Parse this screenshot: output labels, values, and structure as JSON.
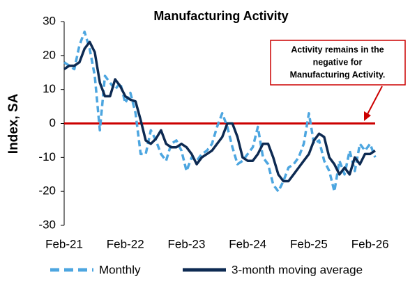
{
  "chart_data": {
    "type": "line",
    "title": "Manufacturing Activity",
    "y_label": "Index, SA",
    "categories": [
      "Feb-21",
      null,
      null,
      null,
      null,
      null,
      null,
      null,
      null,
      null,
      null,
      null,
      "Feb-22",
      null,
      null,
      null,
      null,
      null,
      null,
      null,
      null,
      null,
      null,
      null,
      "Feb-23",
      null,
      null,
      null,
      null,
      null,
      null,
      null,
      null,
      null,
      null,
      null,
      "Feb-24",
      null,
      null,
      null,
      null,
      null,
      null,
      null,
      null,
      null,
      null,
      null,
      "Feb-25",
      null,
      null,
      null,
      null,
      null,
      null,
      null,
      null,
      null,
      null,
      null,
      "Feb-26",
      null
    ],
    "series": [
      {
        "name": "Monthly",
        "color": "#4da6e0",
        "dashed": true,
        "values": [
          18,
          17,
          16,
          23,
          27,
          22,
          14,
          -2,
          14,
          12,
          10,
          12,
          6,
          9,
          3,
          -9,
          -9,
          -2,
          -5,
          -9,
          -11,
          -6,
          -5,
          -8,
          -14,
          -10,
          -11,
          -9,
          -8,
          -6,
          -1,
          3,
          -1,
          -7,
          -12,
          -11,
          -9,
          -7,
          -1,
          -10,
          -12,
          -18,
          -20,
          -17,
          -13,
          -12,
          -10,
          -6,
          3,
          -6,
          -5,
          -11,
          -14,
          -20,
          -11,
          -15,
          -8,
          -14,
          -6,
          -8,
          -6,
          -10
        ]
      },
      {
        "name": "3-month moving average",
        "color": "#0d2a52",
        "dashed": false,
        "values": [
          16,
          17,
          17,
          18,
          22,
          24,
          21,
          12,
          8,
          8,
          13,
          11,
          8,
          7,
          6.5,
          1,
          -5,
          -6,
          -4.5,
          -2,
          -6,
          -7,
          -7,
          -6,
          -7,
          -9,
          -12,
          -10,
          -9,
          -8,
          -6,
          -4,
          0,
          0,
          -4,
          -10,
          -11,
          -11,
          -9,
          -6,
          -6,
          -10,
          -15,
          -17,
          -17,
          -15,
          -13,
          -11,
          -9,
          -5,
          -3,
          -4,
          -10,
          -12,
          -15,
          -13,
          -15,
          -10,
          -12,
          -9,
          -9,
          -8
        ]
      }
    ],
    "ylim": [
      -30,
      30
    ],
    "yticks": [
      30,
      20,
      10,
      0,
      -10,
      -20,
      -30
    ],
    "reference_line": {
      "value": 0,
      "color": "#cc0000"
    },
    "annotation": {
      "lines": [
        "Activity remains in the",
        "negative for",
        "Manufacturing Activity."
      ],
      "color": "#cc0000"
    },
    "legend": "bottom"
  }
}
